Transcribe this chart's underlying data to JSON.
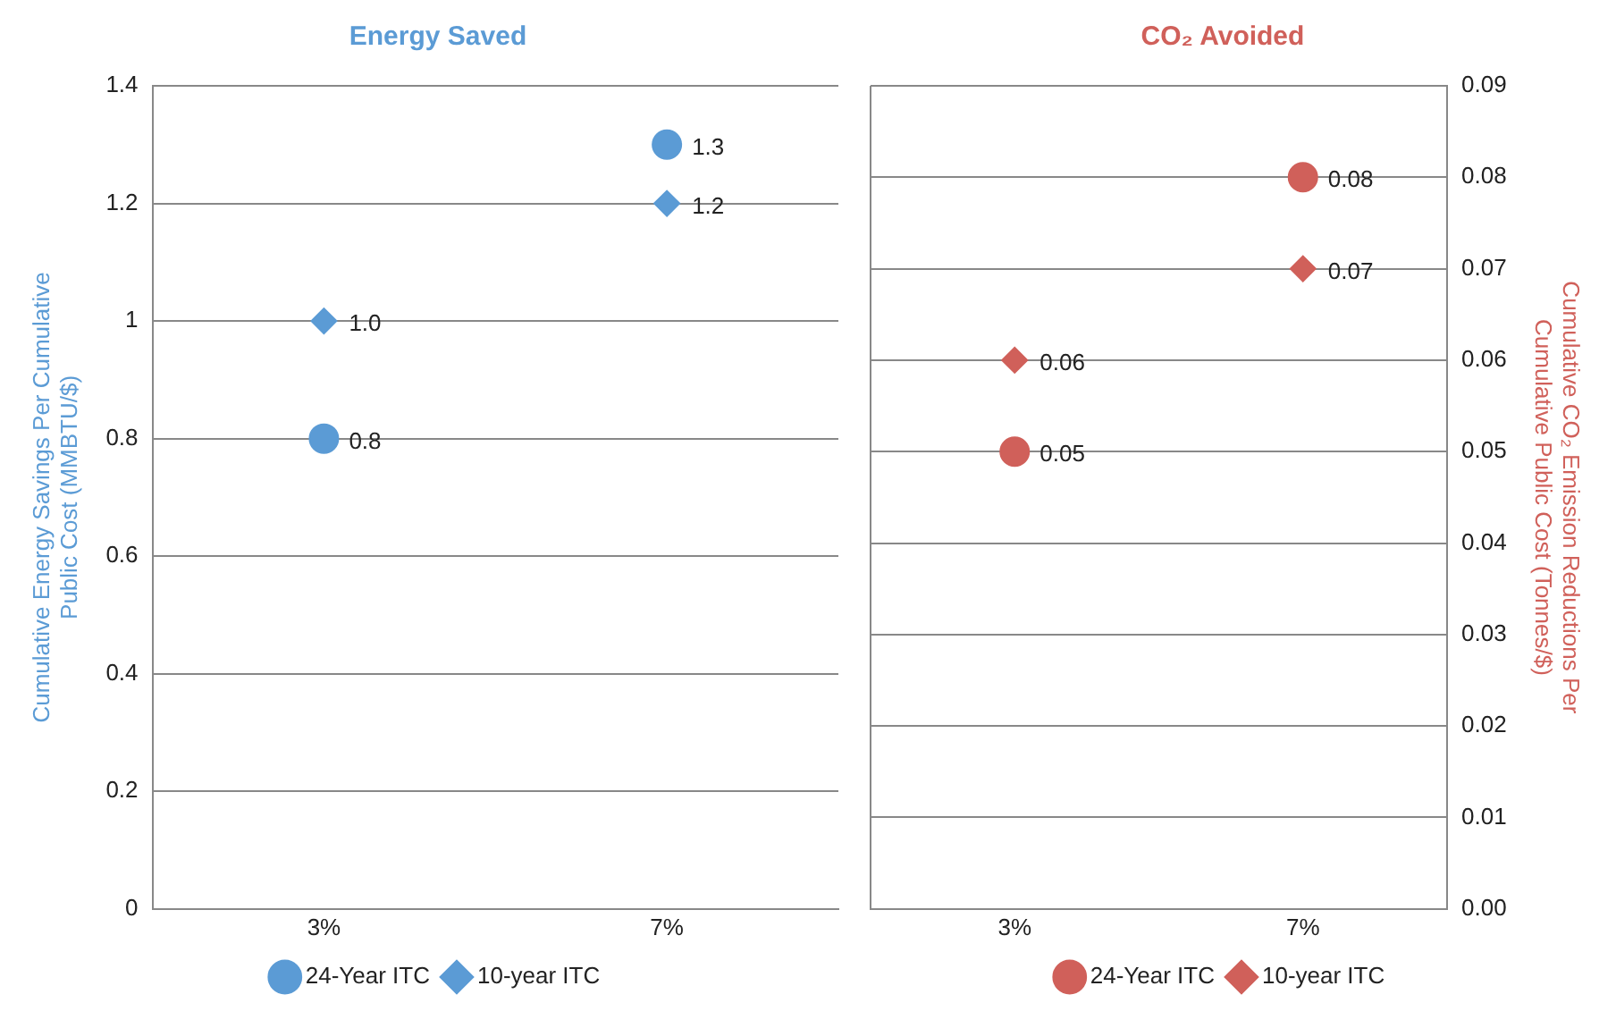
{
  "chart_data": [
    {
      "type": "scatter",
      "title": "Energy Saved",
      "ylabel": "Cumulative Energy Savings Per Cumulative Public Cost (MMBTU/$)",
      "categories": [
        "3%",
        "7%"
      ],
      "ylim": [
        0,
        1.4
      ],
      "yticks": [
        0,
        0.2,
        0.4,
        0.6,
        0.8,
        1,
        1.2,
        1.4
      ],
      "grid": "y",
      "legend": "bottom",
      "series": [
        {
          "name": "24-Year ITC",
          "color": "#5b9bd5",
          "marker": "circle",
          "values": [
            0.8,
            1.3
          ],
          "value_labels": [
            "0.8",
            "1.3"
          ]
        },
        {
          "name": "10-year ITC",
          "color": "#5b9bd5",
          "marker": "diamond",
          "values": [
            1.0,
            1.2
          ],
          "value_labels": [
            "1.0",
            "1.2"
          ]
        }
      ]
    },
    {
      "type": "scatter",
      "title": "CO₂ Avoided",
      "y2label": "Cumulative CO₂ Emission Reductions Per Cumulative Public Cost (Tonnes/$)",
      "categories": [
        "3%",
        "7%"
      ],
      "y2lim": [
        0,
        0.09
      ],
      "y2ticks": [
        {
          "value": 0,
          "label": "0.00"
        },
        {
          "value": 0.01,
          "label": "0.01"
        },
        {
          "value": 0.02,
          "label": "0.02"
        },
        {
          "value": 0.03,
          "label": "0.03"
        },
        {
          "value": 0.04,
          "label": "0.04"
        },
        {
          "value": 0.05,
          "label": "0.05"
        },
        {
          "value": 0.06,
          "label": "0.06"
        },
        {
          "value": 0.07,
          "label": "0.07"
        },
        {
          "value": 0.08,
          "label": "0.08"
        },
        {
          "value": 0.09,
          "label": "0.09"
        }
      ],
      "grid": "y",
      "legend": "bottom",
      "series": [
        {
          "name": "24-Year ITC",
          "color": "#d0605a",
          "marker": "circle",
          "axis": "y2",
          "values": [
            0.05,
            0.08
          ],
          "value_labels": [
            "0.05",
            "0.08"
          ]
        },
        {
          "name": "10-year ITC",
          "color": "#d0605a",
          "marker": "diamond",
          "axis": "y2",
          "values": [
            0.06,
            0.07
          ],
          "value_labels": [
            "0.06",
            "0.07"
          ]
        }
      ]
    }
  ]
}
